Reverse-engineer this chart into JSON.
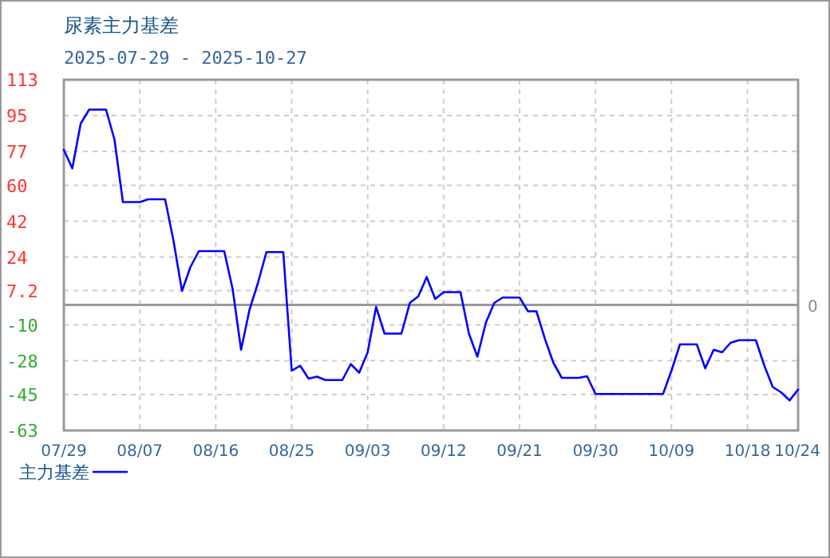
{
  "chart_data": {
    "type": "line",
    "title": "尿素主力基差",
    "subtitle": "2025-07-29 - 2025-10-27",
    "categories": [
      "07/29",
      null,
      null,
      null,
      null,
      null,
      null,
      null,
      null,
      "08/07",
      null,
      null,
      null,
      null,
      null,
      null,
      null,
      null,
      "08/16",
      null,
      null,
      null,
      null,
      null,
      null,
      null,
      null,
      "08/25",
      null,
      null,
      null,
      null,
      null,
      null,
      null,
      null,
      "09/03",
      null,
      null,
      null,
      null,
      null,
      null,
      null,
      null,
      "09/12",
      null,
      null,
      null,
      null,
      null,
      null,
      null,
      null,
      "09/21",
      null,
      null,
      null,
      null,
      null,
      null,
      null,
      null,
      "09/30",
      null,
      null,
      null,
      null,
      null,
      null,
      null,
      null,
      "10/09",
      null,
      null,
      null,
      null,
      null,
      null,
      null,
      null,
      "10/18",
      null,
      null,
      null,
      null,
      null,
      "10/24"
    ],
    "series": [
      {
        "name": "主力基差",
        "color": "#0000ff",
        "values": [
          77.8,
          68.5,
          91,
          98,
          98,
          98,
          83,
          51.6,
          51.6,
          51.6,
          53,
          53,
          53,
          32,
          7,
          19,
          27,
          27,
          27,
          27,
          8,
          -22.5,
          -2.4,
          11,
          26.5,
          26.5,
          26.5,
          -33,
          -30.5,
          -37,
          -36,
          -37.7,
          -37.7,
          -37.7,
          -29.7,
          -34,
          -23.8,
          -1,
          -14.4,
          -14.4,
          -14.4,
          1,
          4.3,
          14,
          3,
          6.4,
          6.4,
          6.4,
          -14.4,
          -26,
          -9,
          1,
          3.7,
          3.7,
          3.7,
          -3.2,
          -3.2,
          -17,
          -29,
          -36.6,
          -36.6,
          -36.6,
          -35.8,
          -44.7,
          -44.7,
          -44.7,
          -44.7,
          -44.7,
          -44.7,
          -44.7,
          -44.7,
          -44.7,
          -33,
          -19.8,
          -19.8,
          -19.8,
          -31.8,
          -22.5,
          -23.8,
          -19,
          -17.7,
          -17.7,
          -17.7,
          -30.5,
          -41.2,
          -43.9,
          -47.9,
          -42.5
        ]
      }
    ],
    "ylim": [
      -63,
      113
    ],
    "yticks": [
      113,
      95,
      77,
      60,
      42,
      24,
      7.2,
      -10,
      -28,
      -45,
      -63
    ],
    "ref_lines": [
      {
        "axis": "y",
        "value": 0,
        "label": "0",
        "color": "#999999"
      }
    ],
    "grid": true,
    "legend": "bottom left",
    "marker": "none",
    "line_style": "solid"
  }
}
